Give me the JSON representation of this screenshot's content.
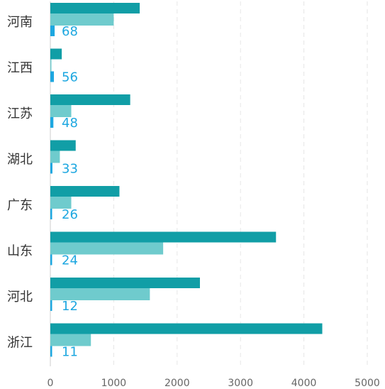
{
  "chart_data": {
    "type": "bar",
    "orientation": "horizontal",
    "categories": [
      "河南",
      "江西",
      "江苏",
      "湖北",
      "广东",
      "山东",
      "河北",
      "浙江"
    ],
    "series": [
      {
        "color": "#119ea6",
        "values": [
          1410,
          180,
          1260,
          400,
          1090,
          3560,
          2360,
          4290
        ]
      },
      {
        "color": "#6fcbcd",
        "values": [
          1000,
          10,
          330,
          150,
          330,
          1780,
          1570,
          640
        ]
      },
      {
        "color": "#1da7e0",
        "values": [
          68,
          56,
          48,
          33,
          26,
          24,
          12,
          11
        ],
        "show_labels": true
      }
    ],
    "xlim": [
      0,
      5000
    ],
    "xticks": [
      0,
      1000,
      2000,
      3000,
      4000,
      5000
    ],
    "grid": true,
    "legend": "none"
  }
}
